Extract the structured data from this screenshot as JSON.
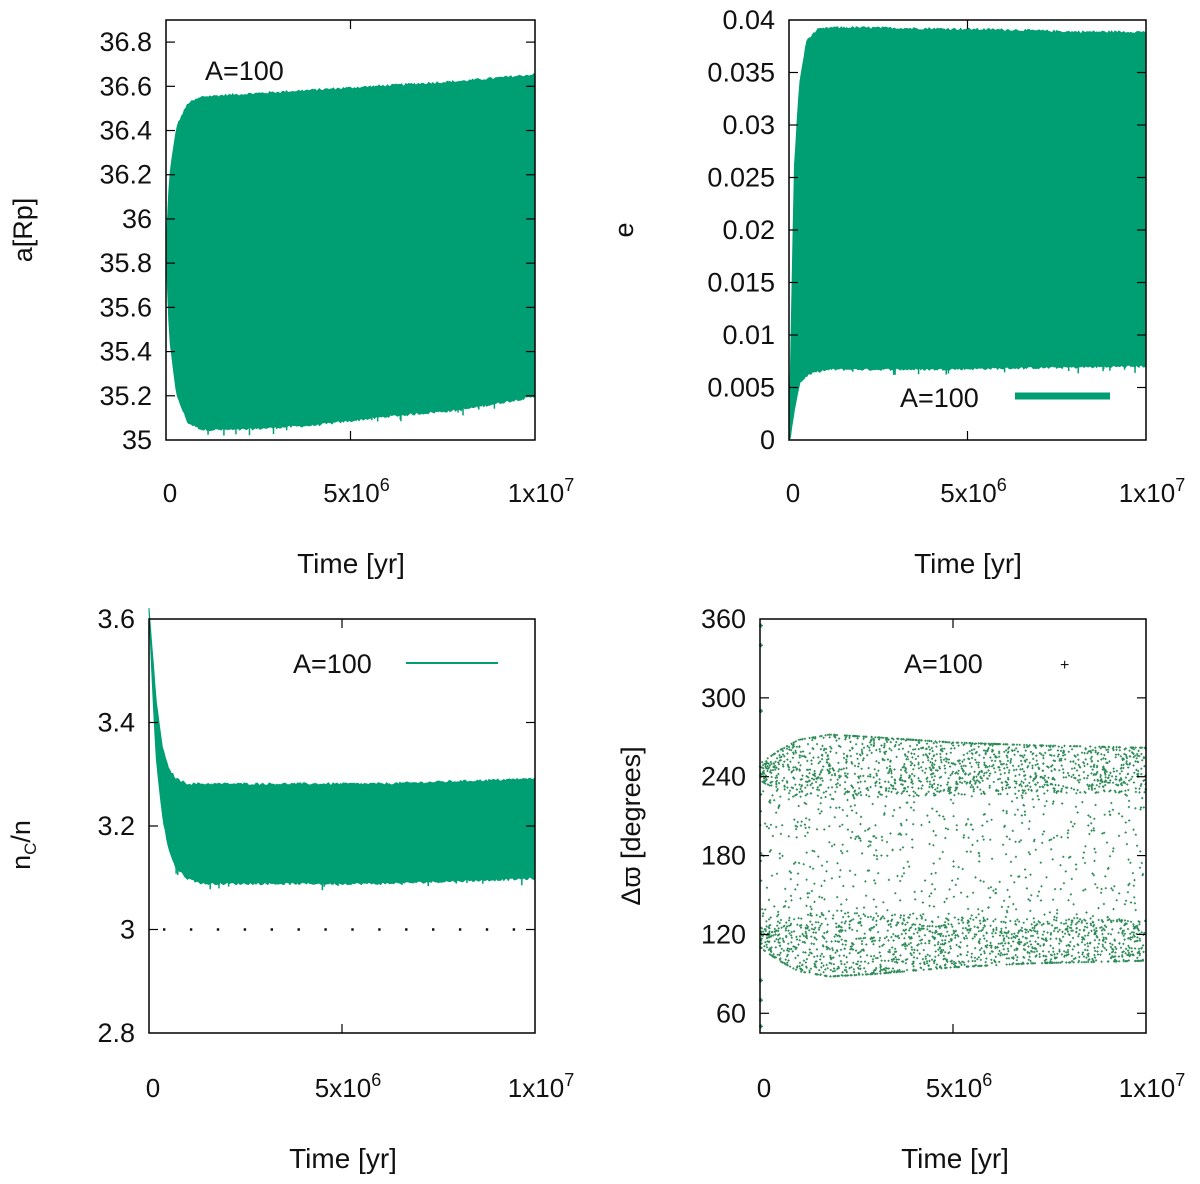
{
  "figure": {
    "series_color": "#009E73",
    "scatter_color": "#2E8B57",
    "axis_color": "#000000"
  },
  "chart_data": [
    {
      "id": "a",
      "type": "area",
      "title": "",
      "xlabel": "Time [yr]",
      "ylabel": "a[Rp]",
      "legend": {
        "label": "A=100",
        "placement": "top-left",
        "style": "text-only"
      },
      "xlim": [
        0,
        10000000
      ],
      "ylim": [
        35,
        36.9
      ],
      "xticks": [
        {
          "value": 0,
          "base": "0",
          "exp": ""
        },
        {
          "value": 5000000,
          "base": "5x10",
          "exp": "6"
        },
        {
          "value": 10000000,
          "base": "1x10",
          "exp": "7"
        }
      ],
      "yticks": [
        {
          "value": 35,
          "label": "35"
        },
        {
          "value": 35.2,
          "label": "35.2"
        },
        {
          "value": 35.4,
          "label": "35.4"
        },
        {
          "value": 35.6,
          "label": "35.6"
        },
        {
          "value": 35.8,
          "label": "35.8"
        },
        {
          "value": 36,
          "label": "36"
        },
        {
          "value": 36.2,
          "label": "36.2"
        },
        {
          "value": 36.4,
          "label": "36.4"
        },
        {
          "value": 36.6,
          "label": "36.6"
        },
        {
          "value": 36.8,
          "label": "36.8"
        }
      ],
      "band": {
        "x": [
          0,
          100000,
          300000,
          600000,
          1000000,
          2000000,
          4000000,
          6000000,
          8000000,
          10000000
        ],
        "upper": [
          35.85,
          36.2,
          36.42,
          36.52,
          36.55,
          36.56,
          36.58,
          36.6,
          36.62,
          36.65
        ],
        "lower": [
          35.85,
          35.45,
          35.2,
          35.08,
          35.05,
          35.05,
          35.07,
          35.11,
          35.14,
          35.2
        ]
      }
    },
    {
      "id": "e",
      "type": "area",
      "title": "",
      "xlabel": "Time [yr]",
      "ylabel": "e",
      "legend": {
        "label": "A=100",
        "placement": "bottom-right",
        "style": "thick-line"
      },
      "xlim": [
        0,
        10000000
      ],
      "ylim": [
        0,
        0.04
      ],
      "xticks": [
        {
          "value": 0,
          "base": "0",
          "exp": ""
        },
        {
          "value": 5000000,
          "base": "5x10",
          "exp": "6"
        },
        {
          "value": 10000000,
          "base": "1x10",
          "exp": "7"
        }
      ],
      "yticks": [
        {
          "value": 0,
          "label": "0"
        },
        {
          "value": 0.005,
          "label": "0.005"
        },
        {
          "value": 0.01,
          "label": "0.01"
        },
        {
          "value": 0.015,
          "label": "0.015"
        },
        {
          "value": 0.02,
          "label": "0.02"
        },
        {
          "value": 0.025,
          "label": "0.025"
        },
        {
          "value": 0.03,
          "label": "0.03"
        },
        {
          "value": 0.035,
          "label": "0.035"
        },
        {
          "value": 0.04,
          "label": "0.04"
        }
      ],
      "band": {
        "x": [
          0,
          50000,
          150000,
          300000,
          500000,
          800000,
          1200000,
          2000000,
          4000000,
          6000000,
          8000000,
          10000000
        ],
        "upper": [
          0.001,
          0.008,
          0.026,
          0.034,
          0.038,
          0.039,
          0.0392,
          0.0392,
          0.0391,
          0.039,
          0.0388,
          0.0388
        ],
        "lower": [
          0,
          0.0005,
          0.003,
          0.0055,
          0.0062,
          0.0066,
          0.0068,
          0.0068,
          0.0068,
          0.0069,
          0.007,
          0.0071
        ]
      }
    },
    {
      "id": "nc",
      "type": "area",
      "title": "",
      "xlabel": "Time [yr]",
      "ylabel_main": "n",
      "ylabel_sub": "C",
      "ylabel_tail": "/n",
      "legend": {
        "label": "A=100",
        "placement": "top-right",
        "style": "thin-line"
      },
      "xlim": [
        0,
        10000000
      ],
      "ylim": [
        2.8,
        3.6
      ],
      "reference_line": {
        "y": 3,
        "style": "dotted"
      },
      "xticks": [
        {
          "value": 0,
          "base": "0",
          "exp": ""
        },
        {
          "value": 5000000,
          "base": "5x10",
          "exp": "6"
        },
        {
          "value": 10000000,
          "base": "1x10",
          "exp": "7"
        }
      ],
      "yticks": [
        {
          "value": 2.8,
          "label": "2.8"
        },
        {
          "value": 3,
          "label": "3"
        },
        {
          "value": 3.2,
          "label": "3.2"
        },
        {
          "value": 3.4,
          "label": "3.4"
        },
        {
          "value": 3.6,
          "label": "3.6"
        }
      ],
      "band": {
        "x": [
          0,
          100000,
          200000,
          350000,
          500000,
          700000,
          1000000,
          1400000,
          3000000,
          6000000,
          8000000,
          10000000
        ],
        "upper": [
          3.62,
          3.52,
          3.43,
          3.35,
          3.31,
          3.29,
          3.28,
          3.28,
          3.28,
          3.28,
          3.285,
          3.29
        ],
        "lower": [
          3.62,
          3.45,
          3.32,
          3.22,
          3.16,
          3.12,
          3.1,
          3.09,
          3.09,
          3.09,
          3.095,
          3.1
        ]
      }
    },
    {
      "id": "dw",
      "type": "scatter",
      "title": "",
      "xlabel": "Time [yr]",
      "ylabel": "Δϖ [degrees]",
      "legend": {
        "label": "A=100",
        "placement": "top-right",
        "style": "point"
      },
      "xlim": [
        0,
        10000000
      ],
      "ylim": [
        45,
        360
      ],
      "xticks": [
        {
          "value": 0,
          "base": "0",
          "exp": ""
        },
        {
          "value": 5000000,
          "base": "5x10",
          "exp": "6"
        },
        {
          "value": 10000000,
          "base": "1x10",
          "exp": "7"
        }
      ],
      "yticks": [
        {
          "value": 60,
          "label": "60"
        },
        {
          "value": 120,
          "label": "120"
        },
        {
          "value": 180,
          "label": "180"
        },
        {
          "value": 240,
          "label": "240"
        },
        {
          "value": 300,
          "label": "300"
        },
        {
          "value": 360,
          "label": "360"
        }
      ],
      "envelope": {
        "x": [
          0,
          500000,
          1000000,
          1800000,
          3000000,
          5000000,
          7000000,
          10000000
        ],
        "upper": [
          250,
          260,
          268,
          272,
          270,
          266,
          264,
          262
        ],
        "lower": [
          110,
          100,
          92,
          88,
          90,
          95,
          98,
          100
        ],
        "concentration_high": 240,
        "concentration_low": 120
      },
      "outliers": [
        {
          "x": 0,
          "y": 355
        },
        {
          "x": 0,
          "y": 340
        },
        {
          "x": 0,
          "y": 290
        },
        {
          "x": 0,
          "y": 85
        },
        {
          "x": 0,
          "y": 70
        },
        {
          "x": 0,
          "y": 50
        }
      ]
    }
  ]
}
